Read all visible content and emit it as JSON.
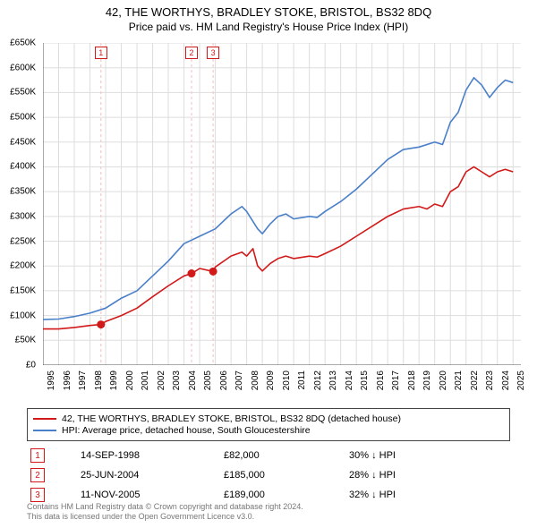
{
  "title_line1": "42, THE WORTHYS, BRADLEY STOKE, BRISTOL, BS32 8DQ",
  "title_line2": "Price paid vs. HM Land Registry's House Price Index (HPI)",
  "chart": {
    "type": "line",
    "background_color": "#ffffff",
    "grid_color": "#dddddd",
    "axis_color": "#555555",
    "x_range": [
      1995,
      2025.5
    ],
    "y_range": [
      0,
      650000
    ],
    "y_ticks": [
      0,
      50000,
      100000,
      150000,
      200000,
      250000,
      300000,
      350000,
      400000,
      450000,
      500000,
      550000,
      600000,
      650000
    ],
    "y_tick_labels": [
      "£0",
      "£50K",
      "£100K",
      "£150K",
      "£200K",
      "£250K",
      "£300K",
      "£350K",
      "£400K",
      "£450K",
      "£500K",
      "£550K",
      "£600K",
      "£650K"
    ],
    "x_ticks": [
      1995,
      1996,
      1997,
      1998,
      1999,
      2000,
      2001,
      2002,
      2003,
      2004,
      2005,
      2006,
      2007,
      2008,
      2009,
      2010,
      2011,
      2012,
      2013,
      2014,
      2015,
      2016,
      2017,
      2018,
      2019,
      2020,
      2021,
      2022,
      2023,
      2024,
      2025
    ],
    "label_fontsize": 10,
    "line_width": 1.6,
    "series": [
      {
        "id": "property",
        "color": "#d11919",
        "points": [
          [
            1995,
            73000
          ],
          [
            1996,
            73000
          ],
          [
            1997,
            76000
          ],
          [
            1998,
            80000
          ],
          [
            1998.7,
            82000
          ],
          [
            1999,
            88000
          ],
          [
            2000,
            100000
          ],
          [
            2001,
            115000
          ],
          [
            2002,
            138000
          ],
          [
            2003,
            160000
          ],
          [
            2004,
            180000
          ],
          [
            2004.5,
            185000
          ],
          [
            2005,
            195000
          ],
          [
            2005.85,
            189000
          ],
          [
            2006,
            198000
          ],
          [
            2007,
            220000
          ],
          [
            2007.7,
            228000
          ],
          [
            2008,
            220000
          ],
          [
            2008.4,
            235000
          ],
          [
            2008.7,
            200000
          ],
          [
            2009,
            190000
          ],
          [
            2009.5,
            205000
          ],
          [
            2010,
            215000
          ],
          [
            2010.5,
            220000
          ],
          [
            2011,
            215000
          ],
          [
            2012,
            220000
          ],
          [
            2012.5,
            218000
          ],
          [
            2013,
            225000
          ],
          [
            2014,
            240000
          ],
          [
            2015,
            260000
          ],
          [
            2016,
            280000
          ],
          [
            2017,
            300000
          ],
          [
            2018,
            315000
          ],
          [
            2019,
            320000
          ],
          [
            2019.5,
            315000
          ],
          [
            2020,
            325000
          ],
          [
            2020.5,
            320000
          ],
          [
            2021,
            350000
          ],
          [
            2021.5,
            360000
          ],
          [
            2022,
            390000
          ],
          [
            2022.5,
            400000
          ],
          [
            2023,
            390000
          ],
          [
            2023.5,
            380000
          ],
          [
            2024,
            390000
          ],
          [
            2024.5,
            395000
          ],
          [
            2025,
            390000
          ]
        ]
      },
      {
        "id": "hpi",
        "color": "#4a7fc9",
        "points": [
          [
            1995,
            92000
          ],
          [
            1996,
            93000
          ],
          [
            1997,
            98000
          ],
          [
            1998,
            105000
          ],
          [
            1999,
            115000
          ],
          [
            2000,
            135000
          ],
          [
            2001,
            150000
          ],
          [
            2002,
            180000
          ],
          [
            2003,
            210000
          ],
          [
            2004,
            245000
          ],
          [
            2005,
            260000
          ],
          [
            2006,
            275000
          ],
          [
            2007,
            305000
          ],
          [
            2007.7,
            320000
          ],
          [
            2008,
            310000
          ],
          [
            2008.7,
            275000
          ],
          [
            2009,
            265000
          ],
          [
            2009.5,
            285000
          ],
          [
            2010,
            300000
          ],
          [
            2010.5,
            305000
          ],
          [
            2011,
            295000
          ],
          [
            2012,
            300000
          ],
          [
            2012.5,
            298000
          ],
          [
            2013,
            310000
          ],
          [
            2014,
            330000
          ],
          [
            2015,
            355000
          ],
          [
            2016,
            385000
          ],
          [
            2017,
            415000
          ],
          [
            2018,
            435000
          ],
          [
            2019,
            440000
          ],
          [
            2020,
            450000
          ],
          [
            2020.5,
            445000
          ],
          [
            2021,
            490000
          ],
          [
            2021.5,
            510000
          ],
          [
            2022,
            555000
          ],
          [
            2022.5,
            580000
          ],
          [
            2023,
            565000
          ],
          [
            2023.5,
            540000
          ],
          [
            2024,
            560000
          ],
          [
            2024.5,
            575000
          ],
          [
            2025,
            570000
          ]
        ]
      }
    ],
    "sale_markers": [
      {
        "n": "1",
        "x": 1998.7,
        "y": 82000,
        "color": "#d11919",
        "vline_color": "#f3c9c9"
      },
      {
        "n": "2",
        "x": 2004.48,
        "y": 185000,
        "color": "#d11919",
        "vline_color": "#f3c9c9"
      },
      {
        "n": "3",
        "x": 2005.86,
        "y": 189000,
        "color": "#d11919",
        "vline_color": "#f3c9c9"
      }
    ],
    "marker_radius": 4.5
  },
  "legend": {
    "items": [
      {
        "color": "#d11919",
        "label": "42, THE WORTHYS, BRADLEY STOKE, BRISTOL, BS32 8DQ (detached house)"
      },
      {
        "color": "#4a7fc9",
        "label": "HPI: Average price, detached house, South Gloucestershire"
      }
    ]
  },
  "sales": [
    {
      "n": "1",
      "color": "#d11919",
      "date": "14-SEP-1998",
      "price": "£82,000",
      "delta": "30% ↓ HPI"
    },
    {
      "n": "2",
      "color": "#d11919",
      "date": "25-JUN-2004",
      "price": "£185,000",
      "delta": "28% ↓ HPI"
    },
    {
      "n": "3",
      "color": "#d11919",
      "date": "11-NOV-2005",
      "price": "£189,000",
      "delta": "32% ↓ HPI"
    }
  ],
  "attribution_line1": "Contains HM Land Registry data © Crown copyright and database right 2024.",
  "attribution_line2": "This data is licensed under the Open Government Licence v3.0."
}
